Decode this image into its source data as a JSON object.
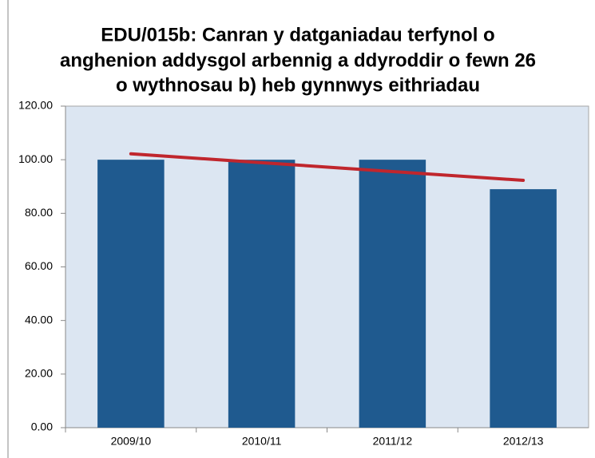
{
  "chart_data": {
    "type": "bar",
    "title": [
      "EDU/015b: Canran y datganiadau terfynol o",
      "anghenion addysgol arbennig a ddyroddir o fewn 26",
      "o wythnosau b) heb gynnwys eithriadau"
    ],
    "categories": [
      "2009/10",
      "2010/11",
      "2011/12",
      "2012/13"
    ],
    "values": [
      100,
      100,
      100,
      89
    ],
    "color": "#1f5a8f",
    "trendline": {
      "values": [
        102.2,
        98.9,
        95.6,
        92.3
      ],
      "color": "#c0262d"
    },
    "ylim": [
      0,
      120
    ],
    "yticks": [
      {
        "value": 0,
        "label": "0.00"
      },
      {
        "value": 20,
        "label": "20.00"
      },
      {
        "value": 40,
        "label": "40.00"
      },
      {
        "value": 60,
        "label": "60.00"
      },
      {
        "value": 80,
        "label": "80.00"
      },
      {
        "value": 100,
        "label": "100.00"
      },
      {
        "value": 120,
        "label": "120.00"
      }
    ],
    "grid": false
  }
}
